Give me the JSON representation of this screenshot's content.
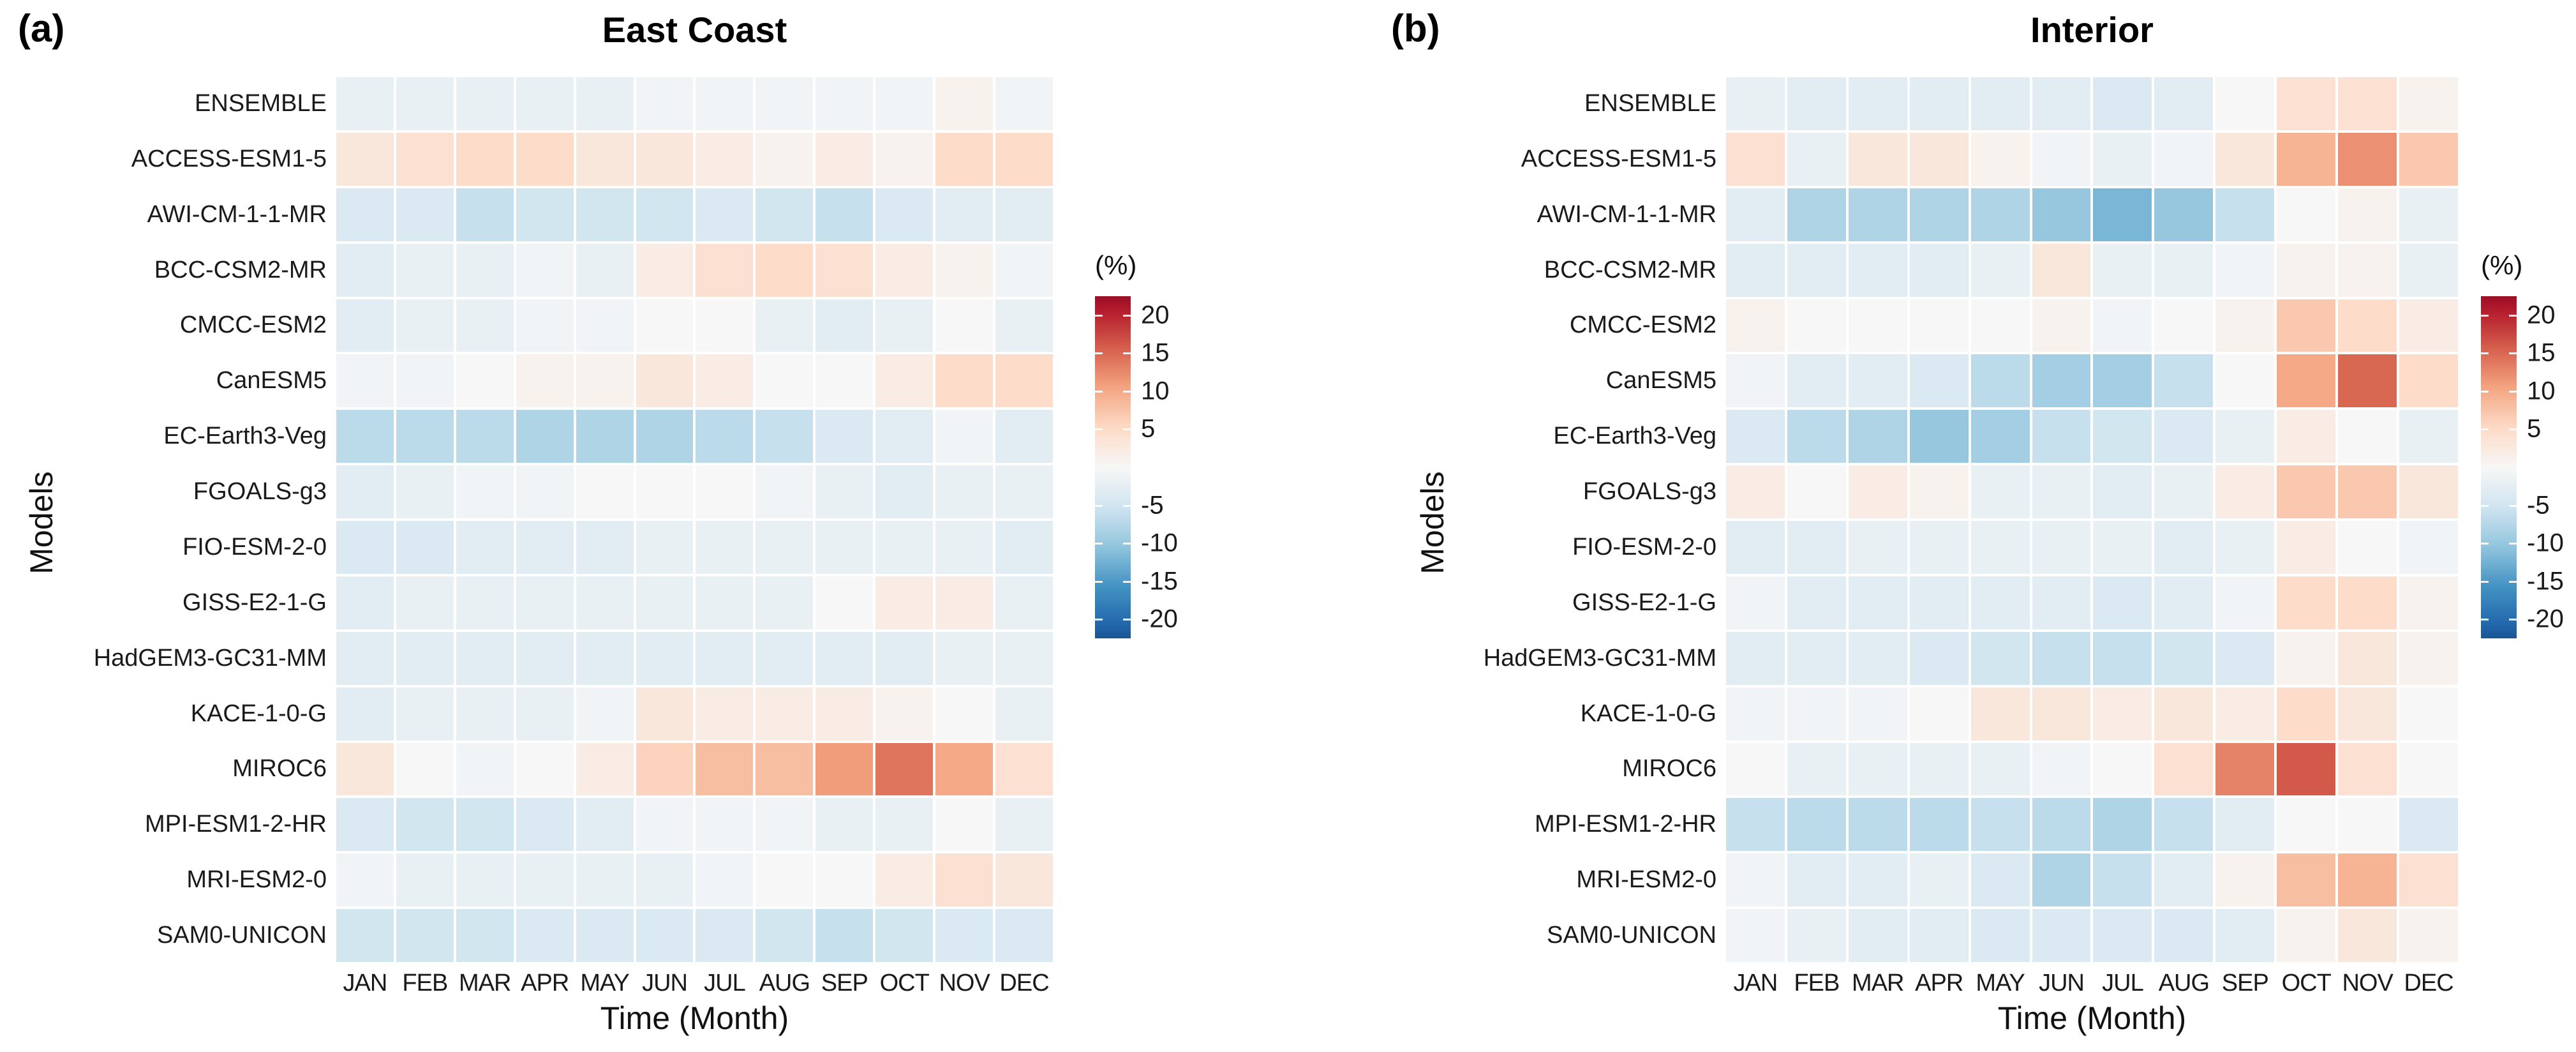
{
  "chart_data": {
    "type": "heatmap",
    "title_a": "East Coast",
    "title_b": "Interior",
    "panel_tag_a": "(a)",
    "panel_tag_b": "(b)",
    "xlabel": "Time (Month)",
    "ylabel": "Models",
    "colorbar_label": "(%)",
    "colorbar_ticks": [
      20,
      15,
      10,
      5,
      -5,
      -10,
      -15,
      -20
    ],
    "colorbar_range": [
      22.5,
      -22.5
    ],
    "colormap": {
      "name": "RdBu",
      "domain": [
        -26,
        26
      ],
      "stops": [
        [
          -1.0,
          "#053061"
        ],
        [
          -0.8,
          "#2166ac"
        ],
        [
          -0.6,
          "#4393c3"
        ],
        [
          -0.4,
          "#92c5de"
        ],
        [
          -0.2,
          "#d1e5f0"
        ],
        [
          0.0,
          "#f7f7f7"
        ],
        [
          0.2,
          "#fddbc7"
        ],
        [
          0.4,
          "#f4a582"
        ],
        [
          0.6,
          "#d6604d"
        ],
        [
          0.8,
          "#b2182b"
        ],
        [
          1.0,
          "#67001f"
        ]
      ]
    },
    "months": [
      "JAN",
      "FEB",
      "MAR",
      "APR",
      "MAY",
      "JUN",
      "JUL",
      "AUG",
      "SEP",
      "OCT",
      "NOV",
      "DEC"
    ],
    "models": [
      "ENSEMBLE",
      "ACCESS-ESM1-5",
      "AWI-CM-1-1-MR",
      "BCC-CSM2-MR",
      "CMCC-ESM2",
      "CanESM5",
      "EC-Earth3-Veg",
      "FGOALS-g3",
      "FIO-ESM-2-0",
      "GISS-E2-1-G",
      "HadGEM3-GC31-MM",
      "KACE-1-0-G",
      "MIROC6",
      "MPI-ESM1-2-HR",
      "MRI-ESM2-0",
      "SAM0-UNICON"
    ],
    "panels": [
      {
        "tag": "(a)",
        "title": "East Coast",
        "values": [
          [
            -2,
            -2,
            -2,
            -2,
            -2,
            -1,
            -1,
            -1,
            -1,
            -1,
            1,
            -1
          ],
          [
            3,
            4,
            5,
            5,
            3,
            3,
            2,
            1,
            2,
            1,
            5,
            5
          ],
          [
            -4,
            -4,
            -6,
            -5,
            -5,
            -5,
            -4,
            -5,
            -6,
            -4,
            -3,
            -3
          ],
          [
            -3,
            -2,
            -2,
            -1,
            -2,
            2,
            4,
            5,
            4,
            2,
            1,
            -1
          ],
          [
            -3,
            -2,
            -2,
            -1,
            -1,
            0,
            0,
            -2,
            -3,
            -2,
            0,
            -2
          ],
          [
            -1,
            -1,
            0,
            1,
            1,
            3,
            2,
            0,
            0,
            2,
            5,
            5
          ],
          [
            -7,
            -7,
            -7,
            -8,
            -8,
            -8,
            -7,
            -6,
            -4,
            -3,
            -1,
            -3
          ],
          [
            -3,
            -2,
            -1,
            -1,
            0,
            0,
            0,
            -1,
            -2,
            -3,
            -2,
            -2
          ],
          [
            -4,
            -4,
            -3,
            -3,
            -3,
            -2,
            -2,
            -2,
            -2,
            -2,
            -2,
            -3
          ],
          [
            -3,
            -2,
            -2,
            -2,
            -2,
            -2,
            -2,
            -2,
            0,
            2,
            2,
            -2
          ],
          [
            -3,
            -3,
            -3,
            -3,
            -3,
            -3,
            -3,
            -3,
            -3,
            -3,
            -2,
            -2
          ],
          [
            -3,
            -2,
            -2,
            -2,
            -1,
            3,
            2,
            2,
            2,
            1,
            0,
            -2
          ],
          [
            3,
            0,
            -1,
            0,
            2,
            6,
            8,
            8,
            11,
            14,
            10,
            4
          ],
          [
            -4,
            -5,
            -5,
            -4,
            -3,
            -1,
            -1,
            -1,
            -2,
            -2,
            0,
            -2
          ],
          [
            -1,
            -2,
            -2,
            -2,
            -2,
            -2,
            -1,
            0,
            0,
            2,
            4,
            3
          ],
          [
            -5,
            -5,
            -5,
            -4,
            -4,
            -4,
            -4,
            -5,
            -6,
            -5,
            -4,
            -4
          ]
        ]
      },
      {
        "tag": "(b)",
        "title": "Interior",
        "values": [
          [
            -2,
            -3,
            -3,
            -3,
            -3,
            -3,
            -4,
            -3,
            0,
            4,
            4,
            1
          ],
          [
            4,
            -2,
            3,
            3,
            1,
            -1,
            -2,
            -1,
            3,
            9,
            12,
            7
          ],
          [
            -3,
            -8,
            -8,
            -8,
            -8,
            -10,
            -12,
            -10,
            -6,
            0,
            1,
            -2
          ],
          [
            -3,
            -3,
            -3,
            -3,
            -2,
            3,
            -2,
            -2,
            -1,
            1,
            1,
            -2
          ],
          [
            1,
            0,
            0,
            0,
            0,
            1,
            -1,
            0,
            1,
            7,
            5,
            2
          ],
          [
            -1,
            -3,
            -3,
            -4,
            -7,
            -9,
            -9,
            -6,
            0,
            10,
            15,
            5
          ],
          [
            -4,
            -7,
            -8,
            -10,
            -9,
            -6,
            -5,
            -4,
            -2,
            2,
            0,
            -2
          ],
          [
            2,
            0,
            2,
            1,
            -2,
            -2,
            -3,
            -2,
            2,
            7,
            7,
            3
          ],
          [
            -3,
            -3,
            -2,
            -2,
            -2,
            -2,
            -2,
            -3,
            -2,
            2,
            0,
            -1
          ],
          [
            -1,
            -3,
            -3,
            -3,
            -3,
            -3,
            -4,
            -3,
            -1,
            5,
            5,
            1
          ],
          [
            -3,
            -3,
            -3,
            -4,
            -5,
            -6,
            -6,
            -5,
            -4,
            1,
            3,
            1
          ],
          [
            -1,
            -1,
            -1,
            0,
            3,
            3,
            2,
            3,
            2,
            5,
            3,
            0
          ],
          [
            0,
            -2,
            -2,
            -2,
            -2,
            -1,
            0,
            4,
            13,
            16,
            4,
            0
          ],
          [
            -6,
            -7,
            -7,
            -7,
            -6,
            -7,
            -8,
            -6,
            -3,
            0,
            0,
            -4
          ],
          [
            -1,
            -3,
            -3,
            -2,
            -4,
            -8,
            -6,
            -3,
            1,
            8,
            9,
            4
          ],
          [
            -1,
            -2,
            -3,
            -3,
            -4,
            -4,
            -4,
            -4,
            -3,
            1,
            3,
            1
          ]
        ]
      }
    ]
  }
}
